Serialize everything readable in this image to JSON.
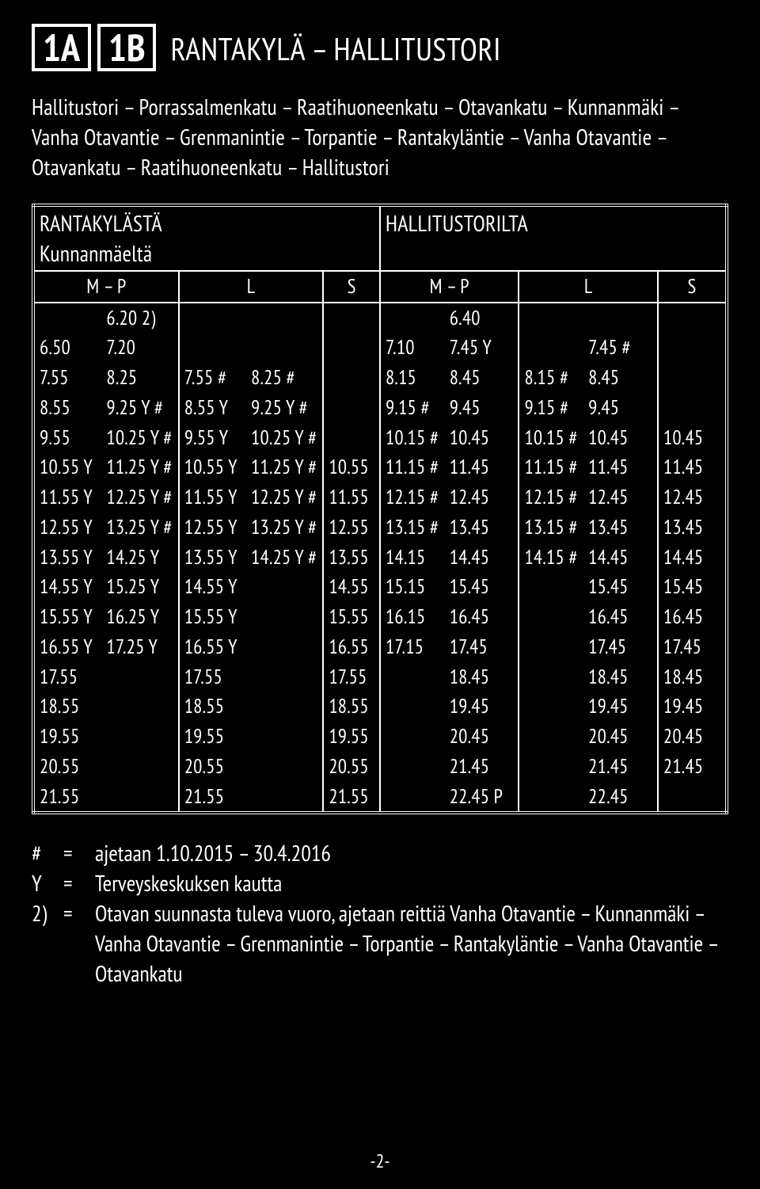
{
  "colors": {
    "bg": "#000000",
    "fg": "#ffffff"
  },
  "badges": [
    "1A",
    "1B"
  ],
  "title": "RANTAKYLÄ – HALLITUSTORI",
  "route_desc": "Hallitustori – Porrassalmenkatu – Raatihuoneenkatu – Otavankatu – Kunnanmäki – Vanha Otavantie – Grenmanintie – Torpantie – Rantakyläntie – Vanha Otavantie – Otavankatu – Raatihuoneenkatu – Hallitustori",
  "left_header": "RANTAKYLÄSTÄ",
  "left_sub": "Kunnanmäeltä",
  "right_header": "HALLITUSTORILTA",
  "col_labels": {
    "mp": "M – P",
    "l": "L",
    "s": "S"
  },
  "left_rows": [
    [
      [
        "",
        "6.20 2)"
      ],
      [
        "",
        ""
      ],
      [
        ""
      ]
    ],
    [
      [
        "6.50",
        "7.20"
      ],
      [
        "",
        ""
      ],
      [
        ""
      ]
    ],
    [
      [
        "7.55",
        "8.25"
      ],
      [
        "7.55 #",
        "8.25 #"
      ],
      [
        ""
      ]
    ],
    [
      [
        "8.55",
        "9.25 Y #"
      ],
      [
        "8.55 Y",
        "9.25 Y #"
      ],
      [
        ""
      ]
    ],
    [
      [
        "9.55",
        "10.25 Y #"
      ],
      [
        "9.55 Y",
        "10.25 Y #"
      ],
      [
        ""
      ]
    ],
    [
      [
        "10.55 Y",
        "11.25 Y #"
      ],
      [
        "10.55 Y",
        "11.25 Y #"
      ],
      [
        "10.55"
      ]
    ],
    [
      [
        "11.55 Y",
        "12.25 Y #"
      ],
      [
        "11.55 Y",
        "12.25 Y #"
      ],
      [
        "11.55"
      ]
    ],
    [
      [
        "12.55 Y",
        "13.25 Y #"
      ],
      [
        "12.55 Y",
        "13.25 Y #"
      ],
      [
        "12.55"
      ]
    ],
    [
      [
        "13.55 Y",
        "14.25 Y"
      ],
      [
        "13.55 Y",
        "14.25 Y #"
      ],
      [
        "13.55"
      ]
    ],
    [
      [
        "14.55 Y",
        "15.25 Y"
      ],
      [
        "14.55 Y",
        ""
      ],
      [
        "14.55"
      ]
    ],
    [
      [
        "15.55 Y",
        "16.25 Y"
      ],
      [
        "15.55 Y",
        ""
      ],
      [
        "15.55"
      ]
    ],
    [
      [
        "16.55 Y",
        "17.25 Y"
      ],
      [
        "16.55 Y",
        ""
      ],
      [
        "16.55"
      ]
    ],
    [
      [
        "17.55",
        ""
      ],
      [
        "17.55",
        ""
      ],
      [
        "17.55"
      ]
    ],
    [
      [
        "18.55",
        ""
      ],
      [
        "18.55",
        ""
      ],
      [
        "18.55"
      ]
    ],
    [
      [
        "19.55",
        ""
      ],
      [
        "19.55",
        ""
      ],
      [
        "19.55"
      ]
    ],
    [
      [
        "20.55",
        ""
      ],
      [
        "20.55",
        ""
      ],
      [
        "20.55"
      ]
    ],
    [
      [
        "21.55",
        ""
      ],
      [
        "21.55",
        ""
      ],
      [
        "21.55"
      ]
    ]
  ],
  "right_rows": [
    [
      [
        "",
        "6.40"
      ],
      [
        "",
        ""
      ],
      [
        ""
      ]
    ],
    [
      [
        "7.10",
        "7.45 Y"
      ],
      [
        "",
        "7.45 #"
      ],
      [
        ""
      ]
    ],
    [
      [
        "8.15",
        "8.45"
      ],
      [
        "8.15 #",
        "8.45"
      ],
      [
        ""
      ]
    ],
    [
      [
        "9.15 #",
        "9.45"
      ],
      [
        "9.15 #",
        "9.45"
      ],
      [
        ""
      ]
    ],
    [
      [
        "10.15 #",
        "10.45"
      ],
      [
        "10.15 #",
        "10.45"
      ],
      [
        "10.45"
      ]
    ],
    [
      [
        "11.15 #",
        "11.45"
      ],
      [
        "11.15 #",
        "11.45"
      ],
      [
        "11.45"
      ]
    ],
    [
      [
        "12.15 #",
        "12.45"
      ],
      [
        "12.15 #",
        "12.45"
      ],
      [
        "12.45"
      ]
    ],
    [
      [
        "13.15 #",
        "13.45"
      ],
      [
        "13.15 #",
        "13.45"
      ],
      [
        "13.45"
      ]
    ],
    [
      [
        "14.15",
        "14.45"
      ],
      [
        "14.15 #",
        "14.45"
      ],
      [
        "14.45"
      ]
    ],
    [
      [
        "15.15",
        "15.45"
      ],
      [
        "",
        "15.45"
      ],
      [
        "15.45"
      ]
    ],
    [
      [
        "16.15",
        "16.45"
      ],
      [
        "",
        "16.45"
      ],
      [
        "16.45"
      ]
    ],
    [
      [
        "17.15",
        "17.45"
      ],
      [
        "",
        "17.45"
      ],
      [
        "17.45"
      ]
    ],
    [
      [
        "",
        "18.45"
      ],
      [
        "",
        "18.45"
      ],
      [
        "18.45"
      ]
    ],
    [
      [
        "",
        "19.45"
      ],
      [
        "",
        "19.45"
      ],
      [
        "19.45"
      ]
    ],
    [
      [
        "",
        "20.45"
      ],
      [
        "",
        "20.45"
      ],
      [
        "20.45"
      ]
    ],
    [
      [
        "",
        "21.45"
      ],
      [
        "",
        "21.45"
      ],
      [
        "21.45"
      ]
    ],
    [
      [
        "",
        "22.45 P"
      ],
      [
        "",
        "22.45"
      ],
      [
        ""
      ]
    ]
  ],
  "footnotes": [
    {
      "sym": "#",
      "text": "ajetaan 1.10.2015 – 30.4.2016"
    },
    {
      "sym": "Y",
      "text": "Terveyskeskuksen kautta"
    },
    {
      "sym": "2)",
      "text": "Otavan suunnasta tuleva vuoro, ajetaan reittiä Vanha Otavantie – Kunnanmäki – Vanha Otavantie – Grenmanintie – Torpantie – Rantakyläntie – Vanha Otavantie – Otavankatu"
    }
  ],
  "page_num": "-2-"
}
